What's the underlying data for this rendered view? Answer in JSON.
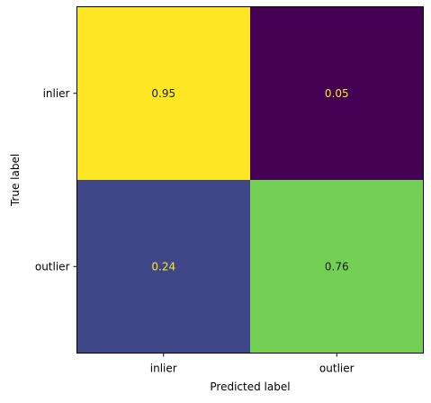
{
  "chart_data": {
    "type": "heatmap",
    "title": "",
    "xlabel": "Predicted label",
    "ylabel": "True label",
    "x_categories": [
      "inlier",
      "outlier"
    ],
    "y_categories": [
      "inlier",
      "outlier"
    ],
    "values": [
      [
        0.95,
        0.05
      ],
      [
        0.24,
        0.76
      ]
    ],
    "value_labels": [
      [
        "0.95",
        "0.05"
      ],
      [
        "0.24",
        "0.76"
      ]
    ],
    "cell_colors": [
      [
        "#fde725",
        "#440154"
      ],
      [
        "#404788",
        "#73d055"
      ]
    ],
    "text_colors": [
      [
        "#1a1a1a",
        "#fde725"
      ],
      [
        "#fde725",
        "#1a1a1a"
      ]
    ],
    "colormap": "viridis",
    "colorbar": false,
    "grid": false
  }
}
